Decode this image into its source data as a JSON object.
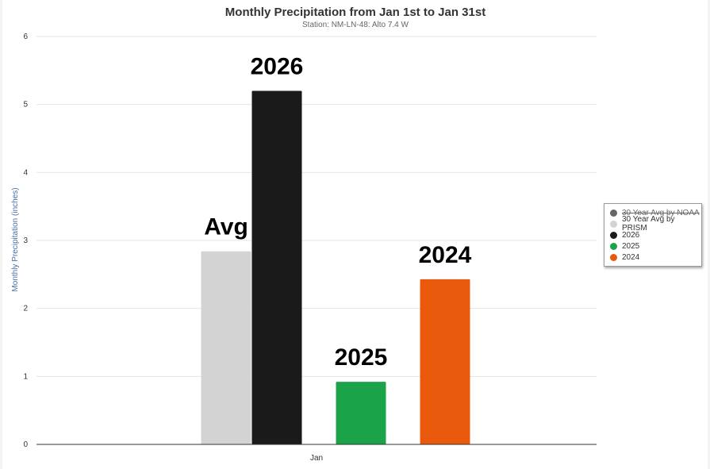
{
  "chart_data": {
    "type": "bar",
    "title": "Monthly Precipitation from Jan 1st to Jan 31st",
    "subtitle": "Station: NM-LN-48: Alto 7.4 W",
    "xlabel": "",
    "ylabel": "Monthly Precipitation (inches)",
    "categories": [
      "Jan"
    ],
    "ylim": [
      0,
      6
    ],
    "yticks": [
      0,
      1,
      2,
      3,
      4,
      5,
      6
    ],
    "grid": true,
    "legend_position": "right",
    "series": [
      {
        "name": "30 Year Avg by NOAA",
        "values": [
          null
        ],
        "color": "#666666",
        "visible": false
      },
      {
        "name": "30 Year Avg by PRISM",
        "values": [
          2.84
        ],
        "color": "#d3d3d3",
        "visible": true,
        "data_label": "Avg"
      },
      {
        "name": "2026",
        "values": [
          5.2
        ],
        "color": "#1a1a1a",
        "visible": true,
        "data_label": "2026"
      },
      {
        "name": "2025",
        "values": [
          0.92
        ],
        "color": "#1ba34a",
        "visible": true,
        "data_label": "2025"
      },
      {
        "name": "2024",
        "values": [
          2.43
        ],
        "color": "#e8590c",
        "visible": true,
        "data_label": "2024"
      }
    ]
  }
}
